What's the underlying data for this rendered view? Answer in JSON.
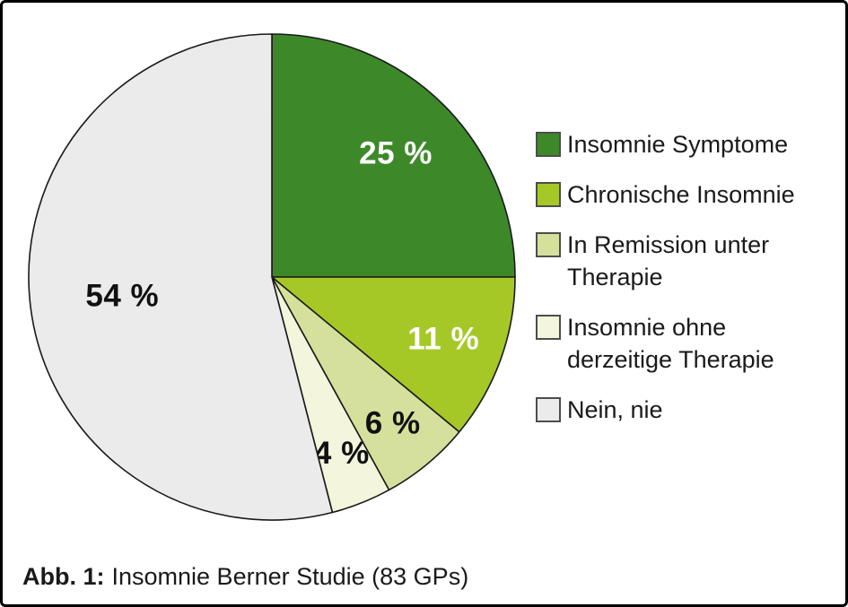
{
  "figure": {
    "caption_prefix": "Abb. 1:",
    "caption_text": "Insomnie Berner Studie (83 GPs)"
  },
  "chart_data": {
    "type": "pie",
    "title": "Insomnie Berner Studie (83 GPs)",
    "start_angle_deg": 0,
    "direction": "clockwise",
    "legend_position": "right",
    "outline_color": "#1a1a1a",
    "background_color": "#ffffff",
    "slices": [
      {
        "label": "Insomnie Symptome",
        "value": 25,
        "display": "25 %",
        "color": "#3d892a",
        "label_color": "#ffffff",
        "label_r": 0.72
      },
      {
        "label": "Chronische Insomnie",
        "value": 11,
        "display": "11 %",
        "color": "#a6c827",
        "label_color": "#ffffff",
        "label_r": 0.75
      },
      {
        "label": "In Remission unter Therapie",
        "value": 6,
        "display": "6 %",
        "color": "#d5e09c",
        "label_color": "#111111",
        "label_r": 0.78
      },
      {
        "label": "Insomnie ohne derzeitige Therapie",
        "value": 4,
        "display": "4 %",
        "color": "#f3f5dc",
        "label_color": "#111111",
        "label_r": 0.78
      },
      {
        "label": "Nein, nie",
        "value": 54,
        "display": "54 %",
        "color": "#ebebeb",
        "label_color": "#111111",
        "label_r": 0.62
      }
    ]
  }
}
